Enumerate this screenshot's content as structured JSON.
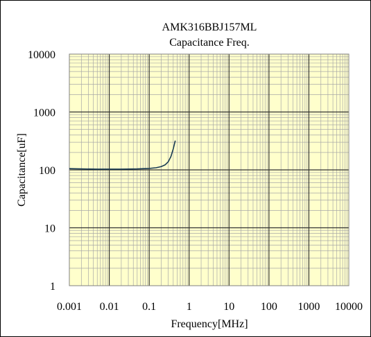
{
  "chart_data": {
    "type": "line",
    "title": "AMK316BBJ157ML",
    "subtitle": "Capacitance Freq.",
    "xlabel": "Frequency[MHz]",
    "ylabel": "Capacitance[uF]",
    "x_scale": "log",
    "y_scale": "log",
    "xlim": [
      0.001,
      10000
    ],
    "ylim": [
      1,
      10000
    ],
    "x_ticks": [
      "0.001",
      "0.01",
      "0.1",
      "1",
      "10",
      "100",
      "1000",
      "10000"
    ],
    "y_ticks": [
      "1",
      "10",
      "100",
      "1000",
      "10000"
    ],
    "grid": true,
    "plot_background": "#ffffcc",
    "line_color": "#173a52",
    "series": [
      {
        "x": [
          0.001,
          0.002,
          0.005,
          0.01,
          0.02,
          0.05,
          0.1,
          0.15,
          0.2,
          0.25,
          0.3,
          0.35,
          0.4,
          0.45
        ],
        "y": [
          105,
          104,
          103,
          103,
          103,
          104,
          106,
          109,
          114,
          122,
          138,
          170,
          230,
          320
        ]
      }
    ]
  }
}
